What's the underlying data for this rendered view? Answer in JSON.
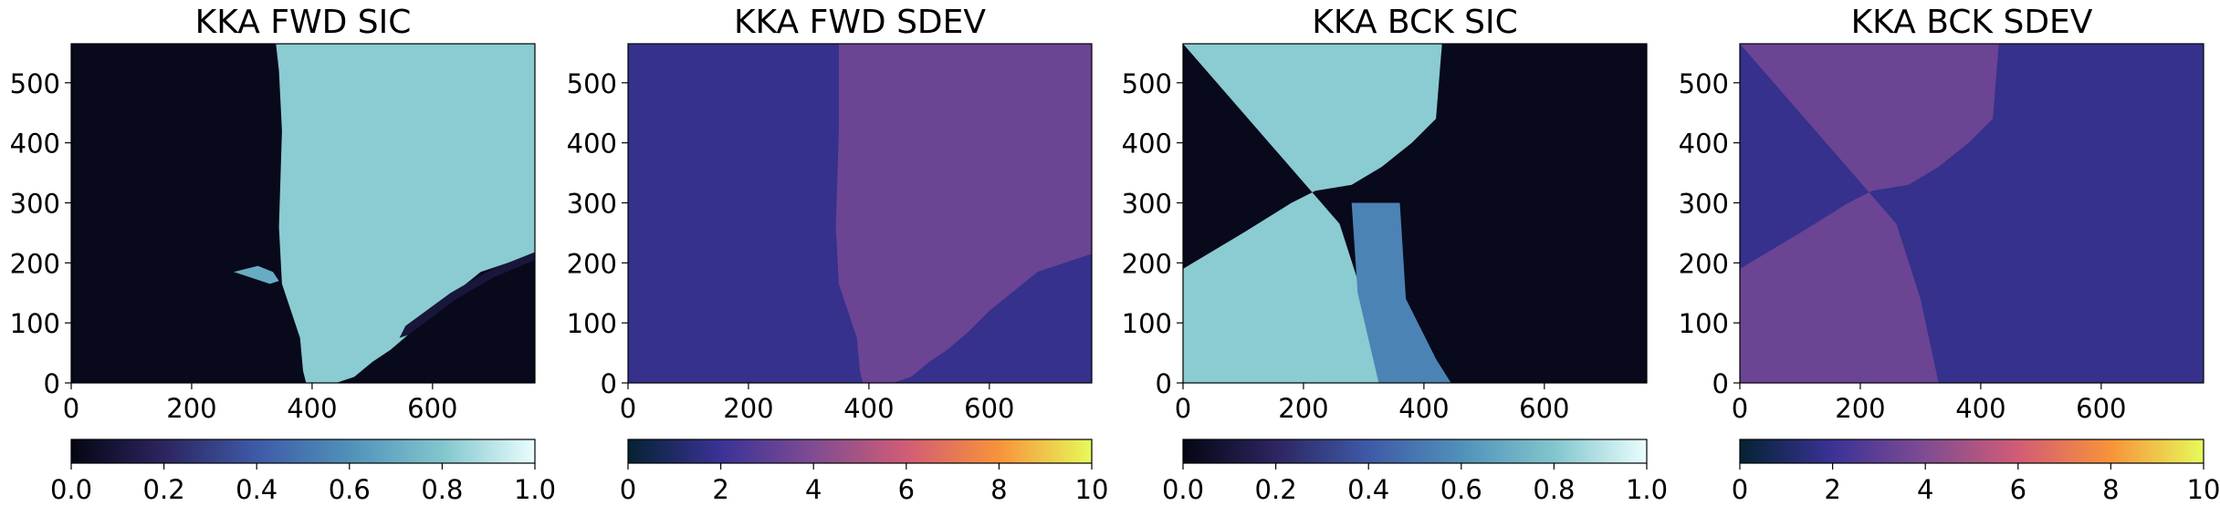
{
  "chart_data": [
    {
      "type": "heatmap",
      "title": "KKA FWD SIC",
      "xlabel": "",
      "ylabel": "",
      "xlim": [
        0,
        770
      ],
      "ylim": [
        0,
        565
      ],
      "xticks": [
        0,
        200,
        400,
        600
      ],
      "yticks": [
        0,
        100,
        200,
        300,
        400,
        500
      ],
      "colormap": "ice",
      "colorbar": {
        "range": [
          0.0,
          1.0
        ],
        "ticks": [
          "0.0",
          "0.2",
          "0.4",
          "0.6",
          "0.8",
          "1.0"
        ]
      },
      "layers": [
        {
          "role": "background",
          "value": 0.02
        },
        {
          "role": "ice-region",
          "value": 0.82,
          "polygon": [
            [
              340,
              565
            ],
            [
              370,
              565
            ],
            [
              770,
              565
            ],
            [
              770,
              215
            ],
            [
              680,
              185
            ],
            [
              600,
              120
            ],
            [
              565,
              85
            ],
            [
              530,
              55
            ],
            [
              500,
              35
            ],
            [
              470,
              10
            ],
            [
              440,
              0
            ],
            [
              390,
              0
            ],
            [
              385,
              20
            ],
            [
              380,
              75
            ],
            [
              350,
              165
            ],
            [
              345,
              260
            ],
            [
              350,
              420
            ],
            [
              345,
              520
            ]
          ]
        },
        {
          "role": "channel",
          "value": 0.1,
          "polygon": [
            [
              545,
              75
            ],
            [
              560,
              80
            ],
            [
              640,
              140
            ],
            [
              700,
              175
            ],
            [
              770,
              205
            ],
            [
              770,
              218
            ],
            [
              700,
              190
            ],
            [
              630,
              150
            ],
            [
              555,
              95
            ]
          ]
        },
        {
          "role": "patches",
          "value": 0.7,
          "polygon": [
            [
              270,
              185
            ],
            [
              310,
              195
            ],
            [
              335,
              185
            ],
            [
              345,
              170
            ],
            [
              330,
              165
            ],
            [
              300,
              175
            ]
          ]
        }
      ]
    },
    {
      "type": "heatmap",
      "title": "KKA FWD SDEV",
      "xlabel": "",
      "ylabel": "",
      "xlim": [
        0,
        770
      ],
      "ylim": [
        0,
        565
      ],
      "xticks": [
        0,
        200,
        400,
        600
      ],
      "yticks": [
        0,
        100,
        200,
        300,
        400,
        500
      ],
      "colormap": "thermal",
      "colorbar": {
        "range": [
          0,
          10
        ],
        "ticks": [
          "0",
          "2",
          "4",
          "6",
          "8",
          "10"
        ]
      },
      "layers": [
        {
          "role": "background",
          "value": 1.8
        },
        {
          "role": "high-sdev-region",
          "value": 3.4,
          "polygon": [
            [
              350,
              565
            ],
            [
              770,
              565
            ],
            [
              770,
              215
            ],
            [
              680,
              185
            ],
            [
              600,
              120
            ],
            [
              565,
              85
            ],
            [
              530,
              55
            ],
            [
              500,
              35
            ],
            [
              470,
              10
            ],
            [
              440,
              0
            ],
            [
              390,
              0
            ],
            [
              385,
              20
            ],
            [
              380,
              75
            ],
            [
              350,
              165
            ],
            [
              345,
              260
            ],
            [
              350,
              420
            ]
          ]
        }
      ]
    },
    {
      "type": "heatmap",
      "title": "KKA BCK SIC",
      "xlabel": "",
      "ylabel": "",
      "xlim": [
        0,
        770
      ],
      "ylim": [
        0,
        565
      ],
      "xticks": [
        0,
        200,
        400,
        600
      ],
      "yticks": [
        0,
        100,
        200,
        300,
        400,
        500
      ],
      "colormap": "ice",
      "colorbar": {
        "range": [
          0.0,
          1.0
        ],
        "ticks": [
          "0.0",
          "0.2",
          "0.4",
          "0.6",
          "0.8",
          "1.0"
        ]
      },
      "layers": [
        {
          "role": "background",
          "value": 0.02
        },
        {
          "role": "ice-region",
          "value": 0.82,
          "polygon": [
            [
              0,
              565
            ],
            [
              430,
              565
            ],
            [
              420,
              440
            ],
            [
              380,
              400
            ],
            [
              330,
              360
            ],
            [
              280,
              330
            ],
            [
              220,
              320
            ],
            [
              180,
              300
            ],
            [
              100,
              250
            ],
            [
              0,
              190
            ],
            [
              0,
              0
            ],
            [
              340,
              0
            ],
            [
              300,
              140
            ],
            [
              260,
              265
            ]
          ]
        },
        {
          "role": "bands",
          "value": 0.55,
          "polygon": [
            [
              280,
              300
            ],
            [
              325,
              300
            ],
            [
              360,
              300
            ],
            [
              370,
              140
            ],
            [
              420,
              40
            ],
            [
              445,
              0
            ],
            [
              325,
              0
            ],
            [
              290,
              150
            ]
          ]
        }
      ]
    },
    {
      "type": "heatmap",
      "title": "KKA BCK SDEV",
      "xlabel": "",
      "ylabel": "",
      "xlim": [
        0,
        770
      ],
      "ylim": [
        0,
        565
      ],
      "xticks": [
        0,
        200,
        400,
        600
      ],
      "yticks": [
        0,
        100,
        200,
        300,
        400,
        500
      ],
      "colormap": "thermal",
      "colorbar": {
        "range": [
          0,
          10
        ],
        "ticks": [
          "0",
          "2",
          "4",
          "6",
          "8",
          "10"
        ]
      },
      "layers": [
        {
          "role": "background",
          "value": 1.8
        },
        {
          "role": "high-sdev-region",
          "value": 3.4,
          "polygon": [
            [
              0,
              565
            ],
            [
              430,
              565
            ],
            [
              420,
              440
            ],
            [
              380,
              400
            ],
            [
              330,
              360
            ],
            [
              280,
              330
            ],
            [
              220,
              320
            ],
            [
              180,
              300
            ],
            [
              100,
              250
            ],
            [
              0,
              190
            ],
            [
              0,
              0
            ],
            [
              330,
              0
            ],
            [
              300,
              140
            ],
            [
              260,
              265
            ]
          ]
        }
      ]
    }
  ]
}
